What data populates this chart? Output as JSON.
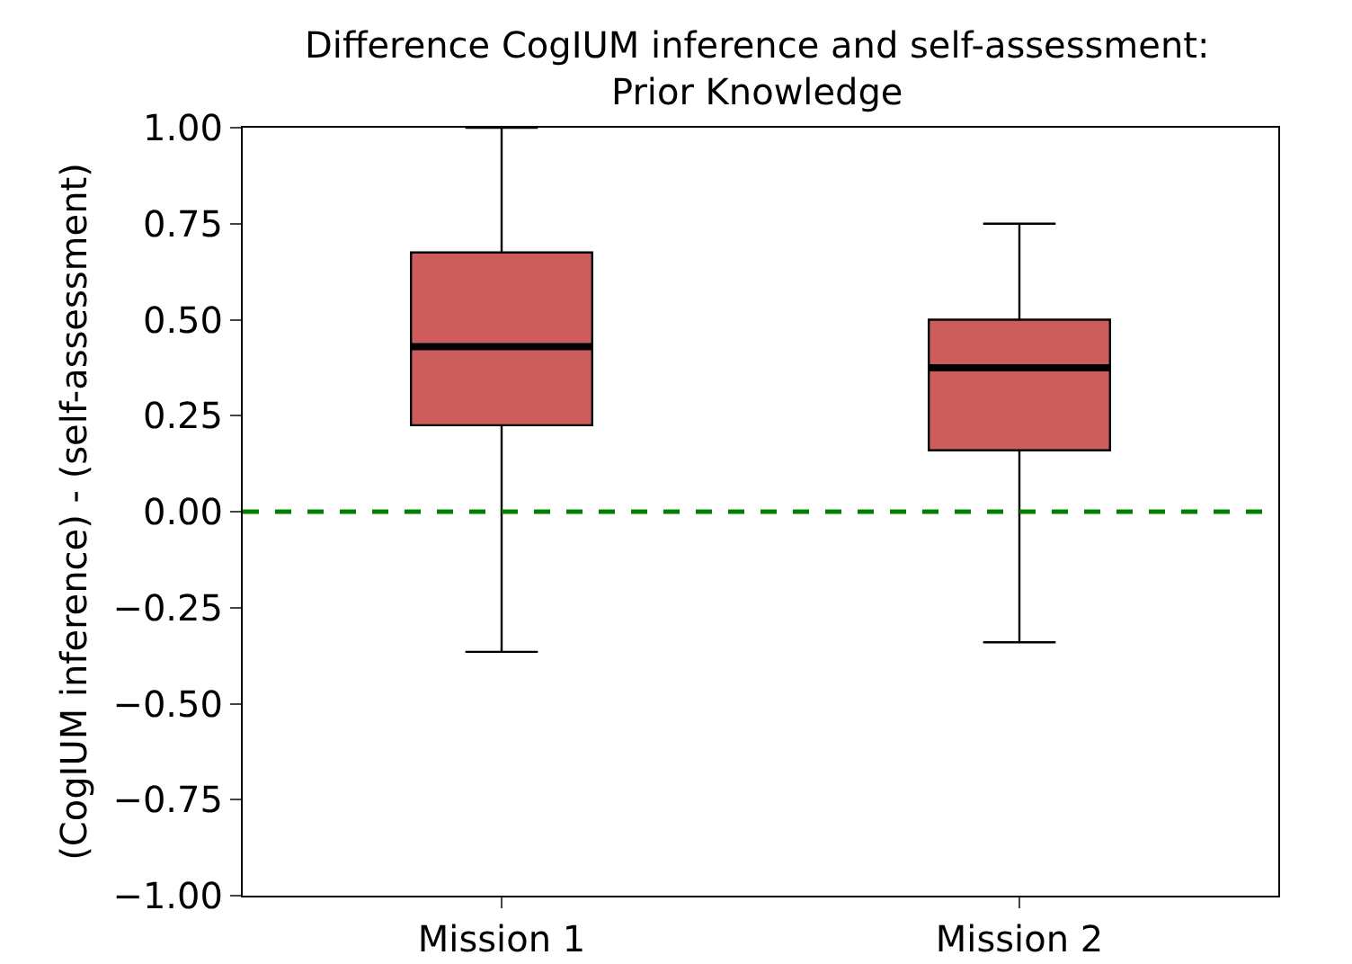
{
  "chart_data": {
    "type": "box",
    "title": "Difference CogIUM inference and self-assessment:\nPrior Knowledge",
    "ylabel": "(CogIUM inference) - (self-assessment)",
    "categories": [
      "Mission 1",
      "Mission 2"
    ],
    "color": "#cd5c5c",
    "boxes": [
      {
        "low": -0.365,
        "q1": 0.225,
        "median": 0.43,
        "q3": 0.675,
        "high": 1.0
      },
      {
        "low": -0.34,
        "q1": 0.16,
        "median": 0.375,
        "q3": 0.5,
        "high": 0.75
      }
    ],
    "ylim": [
      -1,
      1
    ],
    "yticks": [
      {
        "value": -1,
        "label": "−1.00"
      },
      {
        "value": -0.75,
        "label": "−0.75"
      },
      {
        "value": -0.5,
        "label": "−0.50"
      },
      {
        "value": -0.25,
        "label": "−0.25"
      },
      {
        "value": 0,
        "label": "0.00"
      },
      {
        "value": 0.25,
        "label": "0.25"
      },
      {
        "value": 0.5,
        "label": "0.50"
      },
      {
        "value": 0.75,
        "label": "0.75"
      },
      {
        "value": 1,
        "label": "1.00"
      }
    ],
    "ref_lines": [
      {
        "axis": "y",
        "value": 0,
        "color": "#008000",
        "line_style": "dashed"
      }
    ]
  }
}
